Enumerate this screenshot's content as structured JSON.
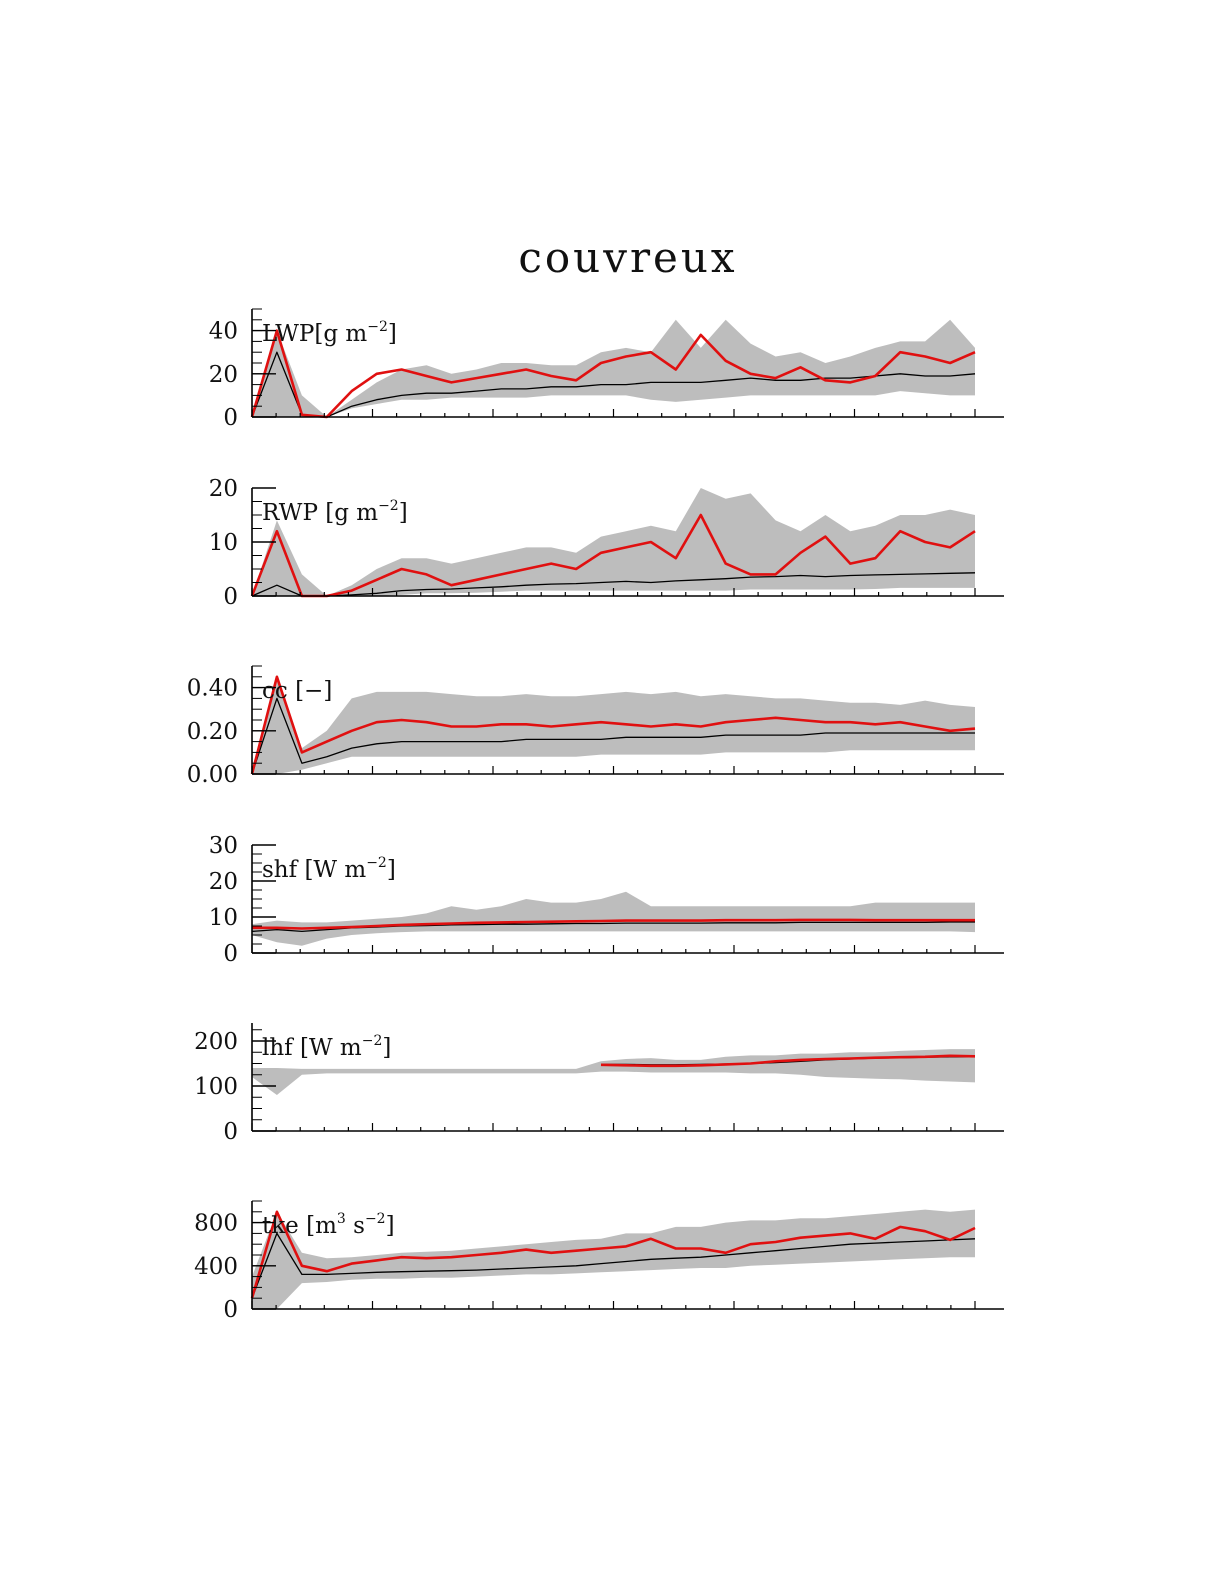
{
  "title": "couvreux",
  "colors": {
    "band": "#bdbdbd",
    "model": "#e01010",
    "mean": "#000000",
    "axis": "#000000"
  },
  "x_range": [
    0,
    60
  ],
  "chart_data": [
    {
      "type": "line",
      "label_parts": [
        "LWP[g m",
        "−2",
        "]"
      ],
      "ylim": [
        0,
        50
      ],
      "yticks": [
        0,
        20,
        40
      ],
      "series": [
        {
          "values": [
            0,
            30,
            1,
            0,
            5,
            8,
            10,
            11,
            11,
            12,
            13,
            13,
            14,
            14,
            15,
            15,
            16,
            16,
            16,
            17,
            18,
            17,
            17,
            18,
            18,
            19,
            20,
            19,
            19,
            20
          ]
        },
        {
          "values": [
            0,
            40,
            1,
            0,
            12,
            20,
            22,
            19,
            16,
            18,
            20,
            22,
            19,
            17,
            25,
            28,
            30,
            22,
            38,
            26,
            20,
            18,
            23,
            17,
            16,
            19,
            30,
            28,
            25,
            30
          ]
        }
      ],
      "band": {
        "lower": [
          0,
          0,
          0,
          0,
          4,
          6,
          8,
          8,
          9,
          9,
          9,
          9,
          10,
          10,
          10,
          10,
          8,
          7,
          8,
          9,
          10,
          10,
          10,
          10,
          10,
          10,
          12,
          11,
          10,
          10
        ],
        "upper": [
          0,
          40,
          10,
          0,
          8,
          16,
          22,
          24,
          20,
          22,
          25,
          25,
          24,
          24,
          30,
          32,
          30,
          45,
          32,
          45,
          34,
          28,
          30,
          25,
          28,
          32,
          35,
          35,
          45,
          32
        ]
      }
    },
    {
      "type": "line",
      "label_parts": [
        "RWP [g m",
        "−2",
        "]"
      ],
      "ylim": [
        0,
        20
      ],
      "yticks": [
        0,
        10,
        20
      ],
      "series": [
        {
          "values": [
            0,
            2,
            0,
            0,
            0.2,
            0.5,
            1,
            1.2,
            1.3,
            1.5,
            1.7,
            2,
            2.2,
            2.3,
            2.5,
            2.7,
            2.5,
            2.8,
            3,
            3.2,
            3.5,
            3.6,
            3.8,
            3.6,
            3.8,
            3.9,
            4,
            4.1,
            4.2,
            4.3
          ]
        },
        {
          "values": [
            0,
            12,
            0,
            0,
            1,
            3,
            5,
            4,
            2,
            3,
            4,
            5,
            6,
            5,
            8,
            9,
            10,
            7,
            15,
            6,
            4,
            4,
            8,
            11,
            6,
            7,
            12,
            10,
            9,
            12
          ]
        }
      ],
      "band": {
        "lower": [
          0,
          0,
          0,
          0,
          0,
          0,
          0.2,
          0.5,
          0.5,
          0.6,
          0.8,
          1,
          1,
          1,
          1,
          1,
          1,
          1,
          1,
          1,
          1.2,
          1.2,
          1.2,
          1.2,
          1.2,
          1.3,
          1.5,
          1.5,
          1.5,
          1.5
        ],
        "upper": [
          0,
          14,
          4,
          0,
          2,
          5,
          7,
          7,
          6,
          7,
          8,
          9,
          9,
          8,
          11,
          12,
          13,
          12,
          20,
          18,
          19,
          14,
          12,
          15,
          12,
          13,
          15,
          15,
          16,
          15
        ]
      }
    },
    {
      "type": "line",
      "label_parts": [
        "cc [−]",
        "",
        ""
      ],
      "ylim": [
        0,
        0.5
      ],
      "yticks": [
        0.0,
        0.2,
        0.4
      ],
      "ytick_labels": [
        "0.00",
        "0.20",
        "0.40"
      ],
      "series": [
        {
          "values": [
            0,
            0.35,
            0.05,
            0.08,
            0.12,
            0.14,
            0.15,
            0.15,
            0.15,
            0.15,
            0.15,
            0.16,
            0.16,
            0.16,
            0.16,
            0.17,
            0.17,
            0.17,
            0.17,
            0.18,
            0.18,
            0.18,
            0.18,
            0.19,
            0.19,
            0.19,
            0.19,
            0.19,
            0.19,
            0.19
          ]
        },
        {
          "values": [
            0,
            0.45,
            0.1,
            0.15,
            0.2,
            0.24,
            0.25,
            0.24,
            0.22,
            0.22,
            0.23,
            0.23,
            0.22,
            0.23,
            0.24,
            0.23,
            0.22,
            0.23,
            0.22,
            0.24,
            0.25,
            0.26,
            0.25,
            0.24,
            0.24,
            0.23,
            0.24,
            0.22,
            0.2,
            0.21
          ]
        }
      ],
      "band": {
        "lower": [
          0,
          0,
          0.02,
          0.05,
          0.08,
          0.08,
          0.08,
          0.08,
          0.08,
          0.08,
          0.08,
          0.08,
          0.08,
          0.08,
          0.09,
          0.09,
          0.09,
          0.09,
          0.09,
          0.1,
          0.1,
          0.1,
          0.1,
          0.1,
          0.11,
          0.11,
          0.11,
          0.11,
          0.11,
          0.11
        ],
        "upper": [
          0,
          0.45,
          0.12,
          0.2,
          0.35,
          0.38,
          0.38,
          0.38,
          0.37,
          0.36,
          0.36,
          0.37,
          0.36,
          0.36,
          0.37,
          0.38,
          0.37,
          0.38,
          0.36,
          0.37,
          0.36,
          0.35,
          0.35,
          0.34,
          0.33,
          0.33,
          0.32,
          0.34,
          0.32,
          0.31
        ]
      }
    },
    {
      "type": "line",
      "label_parts": [
        "shf [W m",
        "−2",
        "]"
      ],
      "ylim": [
        0,
        30
      ],
      "yticks": [
        0,
        10,
        20,
        30
      ],
      "series": [
        {
          "values": [
            6,
            6.5,
            6,
            6.5,
            7,
            7.2,
            7.5,
            7.6,
            7.8,
            7.9,
            8,
            8,
            8.1,
            8.2,
            8.2,
            8.3,
            8.3,
            8.3,
            8.3,
            8.4,
            8.4,
            8.4,
            8.5,
            8.5,
            8.5,
            8.5,
            8.5,
            8.5,
            8.6,
            8.6
          ]
        },
        {
          "values": [
            7,
            7,
            6.8,
            7,
            7.2,
            7.5,
            7.8,
            8,
            8.2,
            8.4,
            8.5,
            8.6,
            8.7,
            8.8,
            8.9,
            9,
            9,
            9,
            9,
            9.1,
            9.1,
            9.1,
            9.2,
            9.2,
            9.2,
            9.1,
            9.1,
            9.1,
            9.1,
            9.1
          ]
        }
      ],
      "band": {
        "lower": [
          5,
          3,
          2,
          4,
          5,
          5.5,
          5.8,
          6,
          6,
          6,
          6,
          6,
          6,
          6,
          6,
          6,
          6,
          6,
          6,
          6,
          6,
          6,
          6,
          6,
          6,
          6,
          6,
          6,
          6,
          5.8
        ],
        "upper": [
          8,
          9,
          8.5,
          8.5,
          9,
          9.5,
          10,
          11,
          13,
          12,
          13,
          15,
          14,
          14,
          15,
          17,
          13,
          13,
          13,
          13,
          13,
          13,
          13,
          13,
          13,
          14,
          14,
          14,
          14,
          14
        ]
      }
    },
    {
      "type": "line",
      "label_parts": [
        "lhf [W m",
        "−2",
        "]"
      ],
      "ylim": [
        0,
        240
      ],
      "yticks": [
        0,
        100,
        200
      ],
      "series": [
        {
          "values": [
            null,
            null,
            null,
            null,
            null,
            null,
            null,
            null,
            null,
            null,
            null,
            null,
            null,
            null,
            148,
            148,
            147,
            147,
            148,
            149,
            150,
            152,
            155,
            158,
            160,
            162,
            163,
            164,
            165,
            165
          ]
        },
        {
          "values": [
            null,
            null,
            null,
            null,
            null,
            null,
            null,
            null,
            null,
            null,
            null,
            null,
            null,
            null,
            147,
            146,
            145,
            145,
            146,
            148,
            150,
            155,
            158,
            160,
            161,
            163,
            164,
            165,
            167,
            166
          ]
        }
      ],
      "band": {
        "lower": [
          120,
          80,
          125,
          128,
          128,
          128,
          128,
          128,
          128,
          128,
          128,
          128,
          128,
          128,
          132,
          132,
          130,
          130,
          130,
          130,
          128,
          128,
          125,
          120,
          118,
          116,
          115,
          112,
          110,
          108
        ],
        "upper": [
          140,
          140,
          138,
          138,
          138,
          138,
          138,
          138,
          138,
          138,
          138,
          138,
          138,
          138,
          155,
          160,
          162,
          158,
          158,
          165,
          168,
          168,
          172,
          172,
          175,
          175,
          178,
          180,
          182,
          182
        ]
      }
    },
    {
      "type": "line",
      "label_parts": [
        "tke [m",
        "3",
        " s"
      ],
      "label_suffix": [
        "−2",
        "]"
      ],
      "ylim": [
        0,
        1000
      ],
      "yticks": [
        0,
        400,
        800
      ],
      "series": [
        {
          "values": [
            100,
            700,
            320,
            320,
            330,
            340,
            345,
            350,
            355,
            360,
            370,
            380,
            390,
            400,
            420,
            440,
            460,
            470,
            480,
            500,
            520,
            540,
            560,
            580,
            600,
            610,
            620,
            630,
            640,
            650
          ]
        },
        {
          "values": [
            100,
            900,
            400,
            350,
            420,
            450,
            480,
            470,
            480,
            500,
            520,
            550,
            520,
            540,
            560,
            580,
            650,
            560,
            560,
            520,
            600,
            620,
            660,
            680,
            700,
            650,
            760,
            720,
            640,
            750
          ]
        }
      ],
      "band": {
        "lower": [
          0,
          0,
          240,
          250,
          270,
          280,
          280,
          290,
          290,
          300,
          310,
          320,
          320,
          330,
          340,
          350,
          360,
          370,
          380,
          380,
          400,
          410,
          420,
          430,
          440,
          450,
          460,
          470,
          480,
          480
        ],
        "upper": [
          300,
          900,
          520,
          470,
          480,
          500,
          520,
          530,
          540,
          560,
          580,
          600,
          620,
          640,
          650,
          700,
          700,
          760,
          760,
          800,
          820,
          820,
          840,
          840,
          860,
          880,
          900,
          920,
          900,
          920
        ]
      }
    }
  ]
}
